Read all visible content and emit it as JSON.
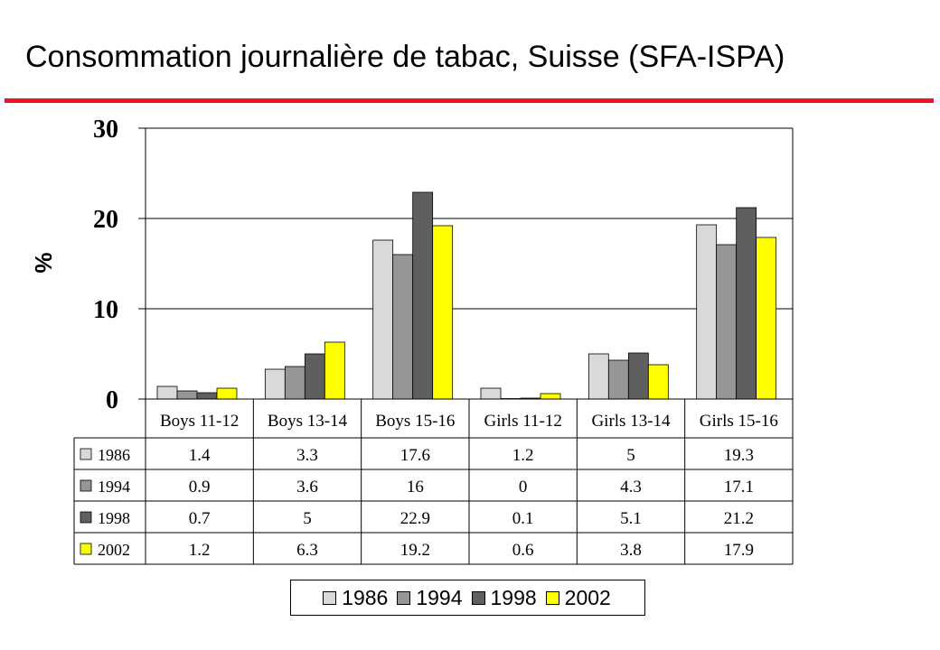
{
  "title": "Consommation journalière de tabac, Suisse (SFA-ISPA)",
  "colors": {
    "title_rule": "#e8161e",
    "series": {
      "1986": "#d9d9d9",
      "1994": "#969696",
      "1998": "#5f5f5f",
      "2002": "#ffff00"
    }
  },
  "chart_data": {
    "type": "bar",
    "title": "Consommation journalière de tabac, Suisse (SFA-ISPA)",
    "ylabel": "%",
    "xlabel": "",
    "ylim": [
      0,
      30
    ],
    "yticks": [
      "0",
      "10",
      "20",
      "30"
    ],
    "ytick_values": [
      0,
      10,
      20,
      30
    ],
    "grid": true,
    "legend_position": "bottom",
    "categories": [
      "Boys 11-12",
      "Boys 13-14",
      "Boys 15-16",
      "Girls 11-12",
      "Girls 13-14",
      "Girls 15-16"
    ],
    "series": [
      {
        "name": "1986",
        "values": [
          1.4,
          3.3,
          17.6,
          1.2,
          5,
          19.3
        ],
        "labels": [
          "1.4",
          "3.3",
          "17.6",
          "1.2",
          "5",
          "19.3"
        ]
      },
      {
        "name": "1994",
        "values": [
          0.9,
          3.6,
          16,
          0,
          4.3,
          17.1
        ],
        "labels": [
          "0.9",
          "3.6",
          "16",
          "0",
          "4.3",
          "17.1"
        ]
      },
      {
        "name": "1998",
        "values": [
          0.7,
          5,
          22.9,
          0.1,
          5.1,
          21.2
        ],
        "labels": [
          "0.7",
          "5",
          "22.9",
          "0.1",
          "5.1",
          "21.2"
        ]
      },
      {
        "name": "2002",
        "values": [
          1.2,
          6.3,
          19.2,
          0.6,
          3.8,
          17.9
        ],
        "labels": [
          "1.2",
          "6.3",
          "19.2",
          "0.6",
          "3.8",
          "17.9"
        ]
      }
    ],
    "data_table": true
  }
}
